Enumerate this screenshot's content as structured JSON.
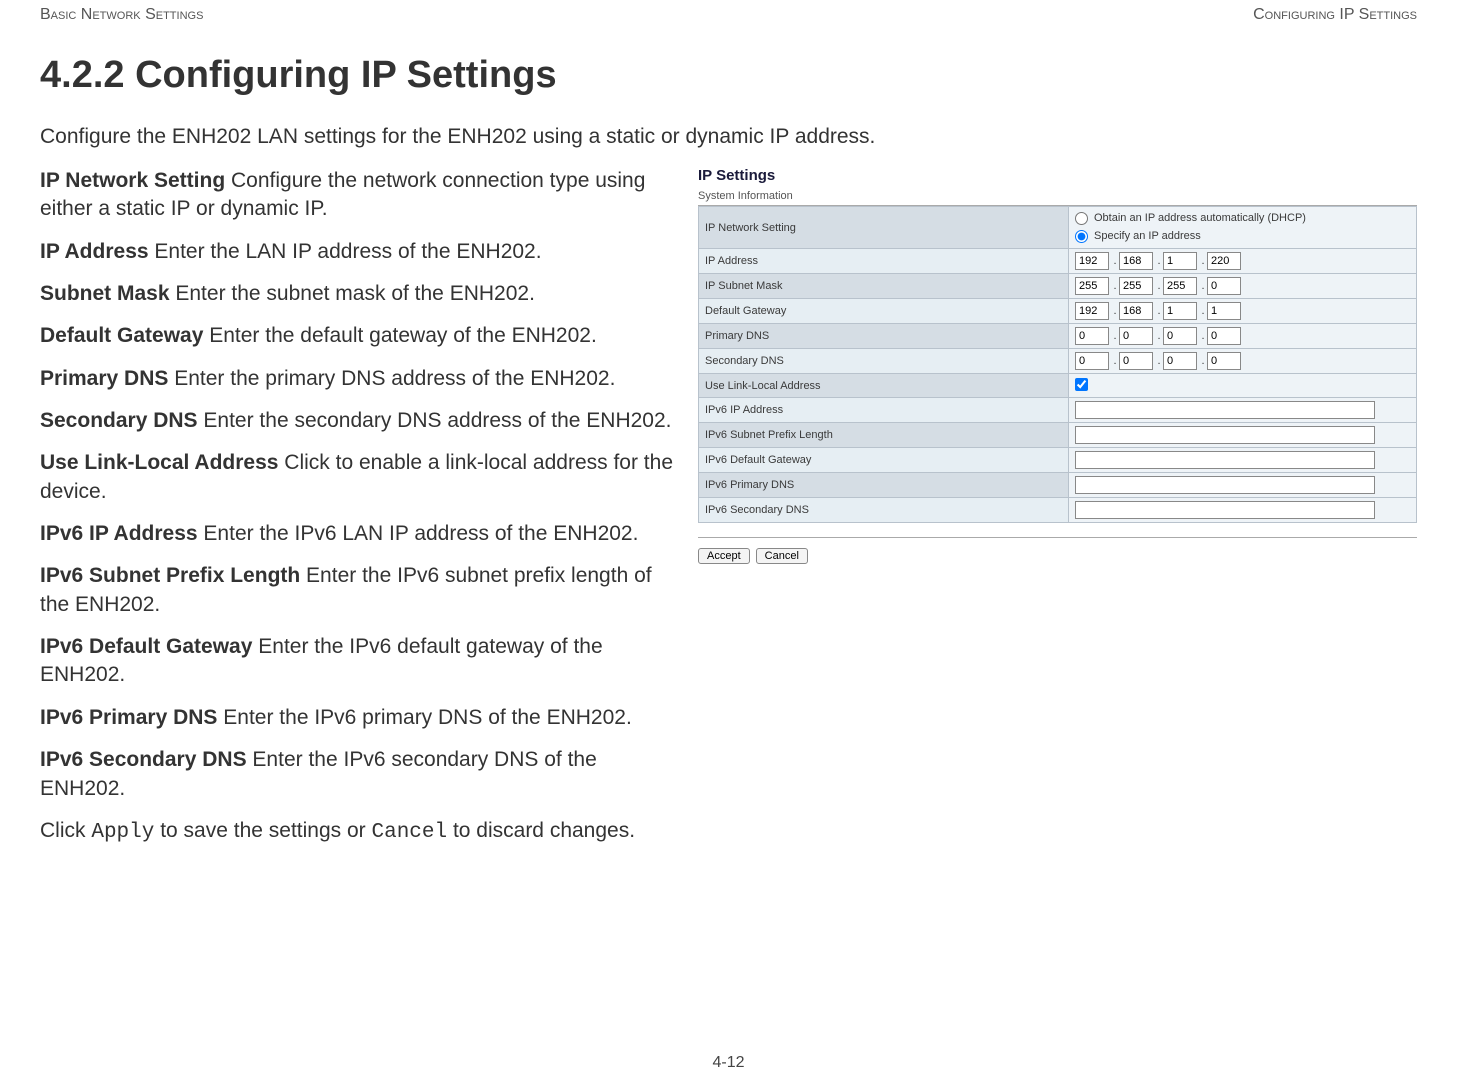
{
  "header": {
    "left": "Basic Network Settings",
    "right": "Configuring IP Settings"
  },
  "section_title": "4.2.2 Configuring IP Settings",
  "intro": "Configure the ENH202 LAN settings for the ENH202 using a static or dynamic IP address.",
  "defs": [
    {
      "term": "IP Network Setting",
      "desc": "Configure the network connection type using either a static IP or dynamic IP."
    },
    {
      "term": "IP Address",
      "desc": "Enter the LAN IP address of the ENH202."
    },
    {
      "term": "Subnet Mask",
      "desc": "Enter the subnet mask of the ENH202."
    },
    {
      "term": "Default Gateway",
      "desc": "Enter the default gateway of the ENH202."
    },
    {
      "term": "Primary DNS",
      "desc": "Enter the primary DNS address of the ENH202."
    },
    {
      "term": "Secondary DNS",
      "desc": "Enter the secondary DNS address of the ENH202."
    },
    {
      "term": "Use Link-Local Address",
      "desc": "Click to enable a link-local address for the device."
    },
    {
      "term": "IPv6 IP Address",
      "desc": "Enter the IPv6 LAN IP address of the ENH202."
    },
    {
      "term": "IPv6 Subnet Prefix Length",
      "desc": "Enter the IPv6 subnet prefix length of the ENH202."
    },
    {
      "term": "IPv6 Default Gateway",
      "desc": "Enter the IPv6 default gateway of the ENH202."
    },
    {
      "term": "IPv6 Primary DNS",
      "desc": "Enter the IPv6 primary DNS of the ENH202."
    },
    {
      "term": "IPv6 Secondary DNS",
      "desc": "Enter the IPv6 secondary DNS of the ENH202."
    }
  ],
  "closing_pre": "Click ",
  "closing_code1": "Apply",
  "closing_mid": " to save the settings or ",
  "closing_code2": "Cancel",
  "closing_post": " to discard changes.",
  "panel": {
    "title": "IP Settings",
    "subtitle": "System Information",
    "rows": {
      "ip_network_setting": "IP Network Setting",
      "radio_dhcp": "Obtain an IP address automatically (DHCP)",
      "radio_static": "Specify an IP address",
      "ip_address": "IP Address",
      "ip_subnet_mask": "IP Subnet Mask",
      "default_gateway": "Default Gateway",
      "primary_dns": "Primary DNS",
      "secondary_dns": "Secondary DNS",
      "use_link_local": "Use Link-Local Address",
      "ipv6_ip": "IPv6 IP Address",
      "ipv6_prefix": "IPv6 Subnet Prefix Length",
      "ipv6_gateway": "IPv6 Default Gateway",
      "ipv6_pdns": "IPv6 Primary DNS",
      "ipv6_sdns": "IPv6 Secondary DNS"
    },
    "values": {
      "ip_address": [
        "192",
        "168",
        "1",
        "220"
      ],
      "subnet_mask": [
        "255",
        "255",
        "255",
        "0"
      ],
      "gateway": [
        "192",
        "168",
        "1",
        "1"
      ],
      "pdns": [
        "0",
        "0",
        "0",
        "0"
      ],
      "sdns": [
        "0",
        "0",
        "0",
        "0"
      ],
      "link_local_checked": true,
      "radio_selected": "static"
    },
    "buttons": {
      "accept": "Accept",
      "cancel": "Cancel"
    }
  },
  "footer": "4-12"
}
